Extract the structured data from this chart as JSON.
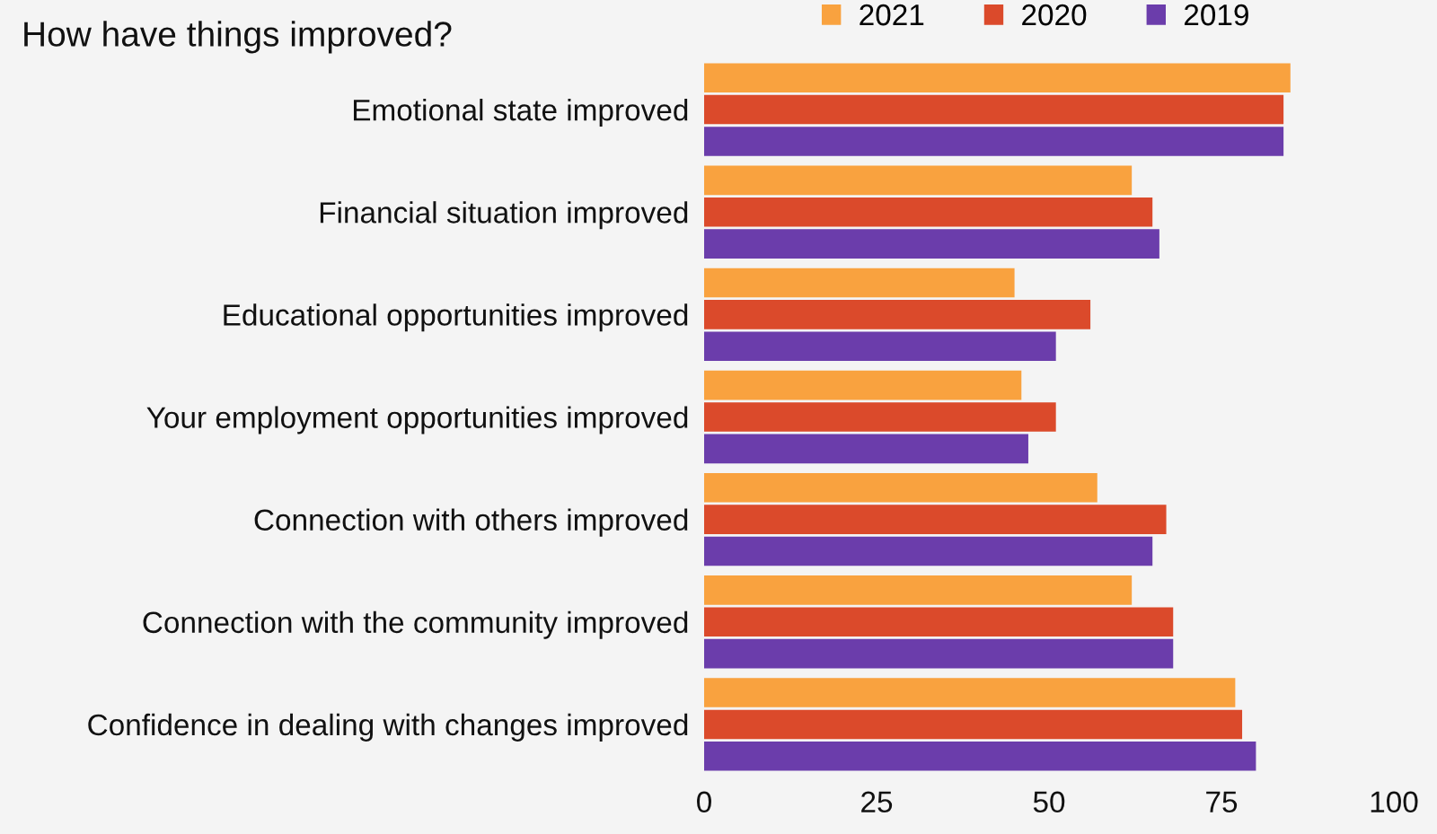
{
  "chart_data": {
    "type": "bar",
    "orientation": "horizontal",
    "title": "How have things improved?",
    "categories": [
      "Emotional state improved",
      "Financial situation improved",
      "Educational opportunities improved",
      "Your employment opportunities improved",
      "Connection with others improved",
      "Connection with the community improved",
      "Confidence in dealing with changes improved"
    ],
    "series": [
      {
        "name": "2021",
        "color": "#f9a23f",
        "values": [
          85,
          62,
          45,
          46,
          57,
          62,
          77
        ]
      },
      {
        "name": "2020",
        "color": "#db4a2b",
        "values": [
          84,
          65,
          56,
          51,
          67,
          68,
          78
        ]
      },
      {
        "name": "2019",
        "color": "#6b3dab",
        "values": [
          84,
          66,
          51,
          47,
          65,
          68,
          80
        ]
      }
    ],
    "xlim": [
      0,
      100
    ],
    "xticks": [
      0,
      25,
      50,
      75,
      100
    ],
    "grid": false,
    "legend": "top right"
  }
}
